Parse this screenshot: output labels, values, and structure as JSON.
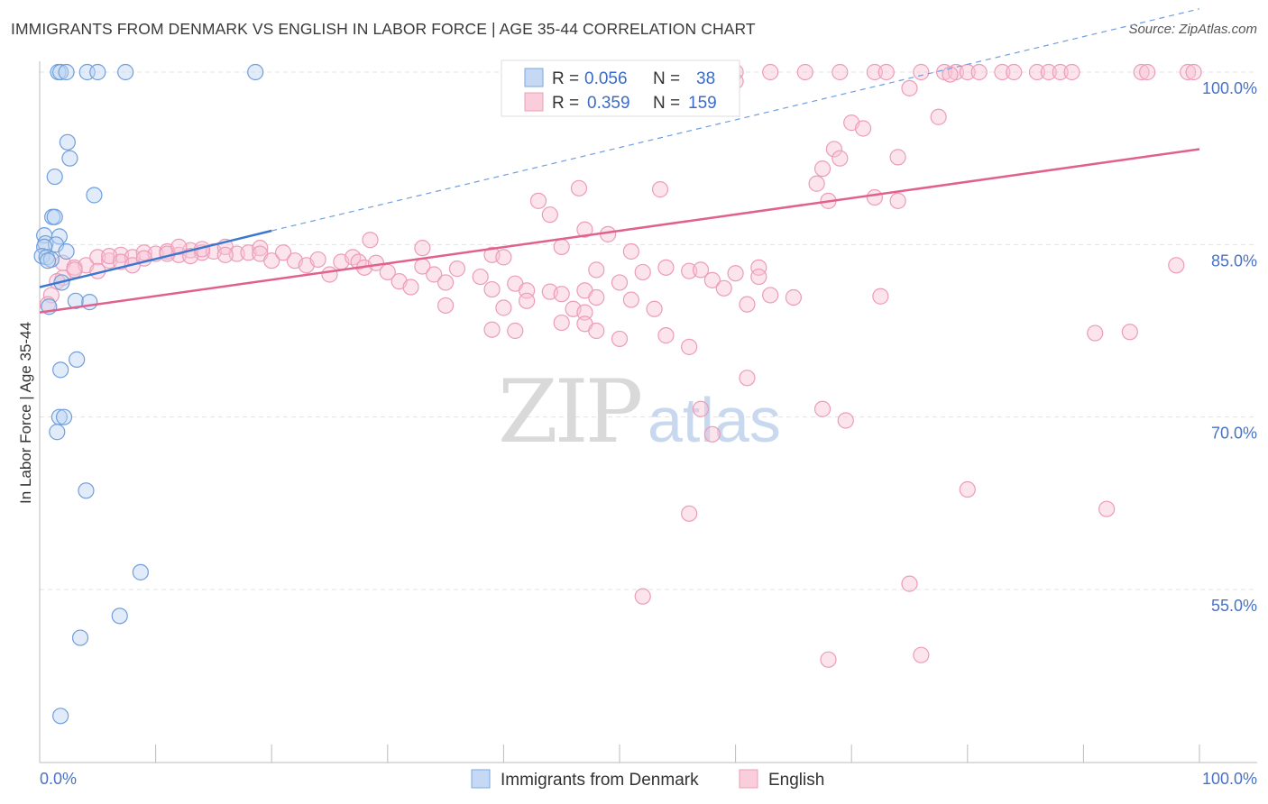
{
  "title": "IMMIGRANTS FROM DENMARK VS ENGLISH IN LABOR FORCE | AGE 35-44 CORRELATION CHART",
  "source": "Source: ZipAtlas.com",
  "watermark": {
    "zip": "ZIP",
    "atlas": "atlas"
  },
  "colors": {
    "blue": "#8db4e8",
    "blue_line": "#3a78d0",
    "pink": "#f3a9c2",
    "pink_line": "#e0608e",
    "axis_label": "#4a72c4"
  },
  "legend": {
    "r_label": "R =",
    "n_label": "N =",
    "rows": [
      {
        "r": "0.056",
        "n": "38"
      },
      {
        "r": "0.359",
        "n": "159"
      }
    ]
  },
  "chart_data": {
    "type": "scatter",
    "title": "IMMIGRANTS FROM DENMARK VS ENGLISH IN LABOR FORCE | AGE 35-44 CORRELATION CHART",
    "xlabel": "",
    "ylabel": "In Labor Force | Age 35-44",
    "xlim": [
      0,
      100
    ],
    "ylim": [
      42,
      102
    ],
    "x_tick_labels": [
      "0.0%",
      "100.0%"
    ],
    "y_ticks": [
      100,
      85,
      70,
      55
    ],
    "y_tick_labels": [
      "100.0%",
      "85.0%",
      "70.0%",
      "55.0%"
    ],
    "grid": true,
    "legend_position": "top-center",
    "series": [
      {
        "name": "Immigrants from Denmark",
        "color": "#8db4e8",
        "trend": {
          "x": [
            0,
            20
          ],
          "y": [
            81.3,
            86.2
          ],
          "extended_to": [
            100,
            105.5
          ]
        },
        "points": [
          [
            1.6,
            100
          ],
          [
            1.8,
            100
          ],
          [
            2.3,
            100
          ],
          [
            4.1,
            100
          ],
          [
            5.0,
            100
          ],
          [
            7.4,
            100
          ],
          [
            18.6,
            100
          ],
          [
            2.4,
            93.9
          ],
          [
            2.6,
            92.5
          ],
          [
            1.3,
            90.9
          ],
          [
            4.7,
            89.3
          ],
          [
            1.1,
            87.4
          ],
          [
            1.3,
            87.4
          ],
          [
            0.4,
            85.8
          ],
          [
            1.7,
            85.7
          ],
          [
            0.5,
            85.1
          ],
          [
            1.4,
            85.0
          ],
          [
            0.4,
            84.8
          ],
          [
            2.3,
            84.4
          ],
          [
            0.2,
            84.0
          ],
          [
            0.6,
            83.9
          ],
          [
            1.0,
            83.7
          ],
          [
            0.7,
            83.6
          ],
          [
            1.9,
            81.7
          ],
          [
            3.1,
            80.1
          ],
          [
            4.3,
            80.0
          ],
          [
            0.8,
            79.6
          ],
          [
            3.2,
            75.0
          ],
          [
            1.8,
            74.1
          ],
          [
            1.7,
            70.0
          ],
          [
            2.1,
            70.0
          ],
          [
            1.5,
            68.7
          ],
          [
            4.0,
            63.6
          ],
          [
            8.7,
            56.5
          ],
          [
            6.9,
            52.7
          ],
          [
            3.5,
            50.8
          ],
          [
            1.8,
            44.0
          ]
        ]
      },
      {
        "name": "English",
        "color": "#f3a9c2",
        "trend": {
          "x": [
            0,
            100
          ],
          "y": [
            79.1,
            93.3
          ]
        },
        "points": [
          [
            56,
            100
          ],
          [
            57,
            100
          ],
          [
            58,
            100
          ],
          [
            60,
            100
          ],
          [
            63,
            100
          ],
          [
            66,
            100
          ],
          [
            69,
            100
          ],
          [
            72,
            100
          ],
          [
            73,
            100
          ],
          [
            76,
            100
          ],
          [
            78,
            100
          ],
          [
            79,
            100
          ],
          [
            80,
            100
          ],
          [
            81,
            100
          ],
          [
            83,
            100
          ],
          [
            84,
            100
          ],
          [
            86,
            100
          ],
          [
            87,
            100
          ],
          [
            88,
            100
          ],
          [
            89,
            100
          ],
          [
            95,
            100
          ],
          [
            95.5,
            100
          ],
          [
            99,
            100
          ],
          [
            99.5,
            100
          ],
          [
            78.5,
            99.8
          ],
          [
            75,
            98.6
          ],
          [
            60,
            99.2
          ],
          [
            77.5,
            96.1
          ],
          [
            70,
            95.6
          ],
          [
            71,
            95.1
          ],
          [
            68.5,
            93.3
          ],
          [
            69,
            92.5
          ],
          [
            74,
            92.6
          ],
          [
            67.5,
            91.6
          ],
          [
            67,
            90.3
          ],
          [
            53.5,
            89.8
          ],
          [
            46.5,
            89.9
          ],
          [
            72,
            89.1
          ],
          [
            74,
            88.8
          ],
          [
            68,
            88.8
          ],
          [
            43,
            88.8
          ],
          [
            44,
            87.6
          ],
          [
            47,
            86.3
          ],
          [
            49,
            85.9
          ],
          [
            28.5,
            85.4
          ],
          [
            33,
            84.7
          ],
          [
            45,
            84.8
          ],
          [
            51,
            84.4
          ],
          [
            39,
            84.1
          ],
          [
            40,
            83.9
          ],
          [
            62,
            83.0
          ],
          [
            2,
            83.4
          ],
          [
            3,
            83.0
          ],
          [
            4,
            83.2
          ],
          [
            5,
            83.9
          ],
          [
            6,
            83.6
          ],
          [
            7,
            84.1
          ],
          [
            8,
            83.9
          ],
          [
            9,
            84.3
          ],
          [
            10,
            84.2
          ],
          [
            11,
            84.4
          ],
          [
            12,
            84.1
          ],
          [
            13,
            84.5
          ],
          [
            14,
            84.3
          ],
          [
            15,
            84.4
          ],
          [
            16,
            84.8
          ],
          [
            17,
            84.2
          ],
          [
            18,
            84.3
          ],
          [
            19,
            84.7
          ],
          [
            6,
            84.0
          ],
          [
            7,
            83.5
          ],
          [
            8,
            83.2
          ],
          [
            9,
            83.8
          ],
          [
            11,
            84.2
          ],
          [
            12,
            84.8
          ],
          [
            13,
            84.0
          ],
          [
            14,
            84.6
          ],
          [
            16,
            84.1
          ],
          [
            3,
            82.8
          ],
          [
            5,
            82.7
          ],
          [
            19,
            84.2
          ],
          [
            20,
            83.6
          ],
          [
            21,
            84.3
          ],
          [
            22,
            83.6
          ],
          [
            23,
            83.2
          ],
          [
            24,
            83.7
          ],
          [
            25,
            82.4
          ],
          [
            26,
            83.5
          ],
          [
            27,
            83.9
          ],
          [
            27.5,
            83.5
          ],
          [
            28,
            83.0
          ],
          [
            29,
            83.4
          ],
          [
            30,
            82.6
          ],
          [
            31,
            81.8
          ],
          [
            32,
            81.3
          ],
          [
            33,
            83.1
          ],
          [
            34,
            82.4
          ],
          [
            35,
            81.7
          ],
          [
            36,
            82.9
          ],
          [
            38,
            82.2
          ],
          [
            39,
            81.1
          ],
          [
            40,
            79.5
          ],
          [
            41,
            81.6
          ],
          [
            42,
            81.0
          ],
          [
            44,
            80.9
          ],
          [
            45,
            80.7
          ],
          [
            47,
            81.0
          ],
          [
            48,
            82.8
          ],
          [
            50,
            81.7
          ],
          [
            52,
            82.6
          ],
          [
            54,
            83.0
          ],
          [
            56,
            82.7
          ],
          [
            58,
            81.9
          ],
          [
            60,
            82.5
          ],
          [
            62,
            82.2
          ],
          [
            57,
            82.8
          ],
          [
            59,
            81.2
          ],
          [
            61,
            79.8
          ],
          [
            63,
            80.6
          ],
          [
            65,
            80.4
          ],
          [
            2,
            82.1
          ],
          [
            1.5,
            81.8
          ],
          [
            1,
            80.6
          ],
          [
            0.7,
            79.8
          ],
          [
            51,
            80.2
          ],
          [
            48,
            80.4
          ],
          [
            42,
            80.1
          ],
          [
            46,
            79.4
          ],
          [
            53,
            79.4
          ],
          [
            47,
            79.1
          ],
          [
            35,
            79.7
          ],
          [
            39,
            77.6
          ],
          [
            41,
            77.5
          ],
          [
            45,
            78.2
          ],
          [
            47,
            78.1
          ],
          [
            48,
            77.5
          ],
          [
            50,
            76.8
          ],
          [
            54,
            77.1
          ],
          [
            56,
            76.1
          ],
          [
            57,
            70.7
          ],
          [
            61,
            73.4
          ],
          [
            67.5,
            70.7
          ],
          [
            69.5,
            69.7
          ],
          [
            58,
            68.5
          ],
          [
            91,
            77.3
          ],
          [
            94,
            77.4
          ],
          [
            92,
            62.0
          ],
          [
            80,
            63.7
          ],
          [
            56,
            61.6
          ],
          [
            75,
            55.5
          ],
          [
            52,
            54.4
          ],
          [
            68,
            48.9
          ],
          [
            76,
            49.3
          ],
          [
            98,
            83.2
          ],
          [
            72.5,
            80.5
          ]
        ]
      }
    ],
    "series_labels": [
      "Immigrants from Denmark",
      "English"
    ]
  }
}
